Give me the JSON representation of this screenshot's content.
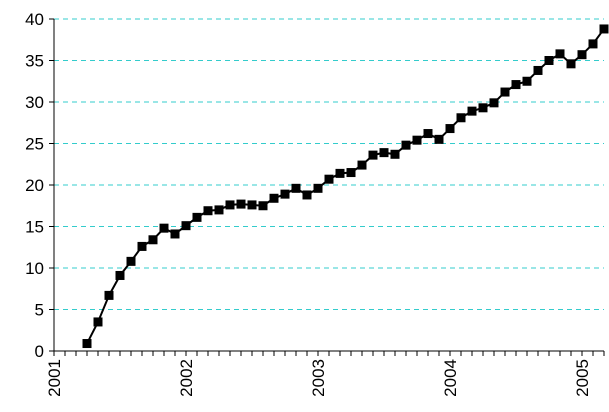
{
  "chart_data": {
    "type": "line",
    "categories": [
      "2001",
      null,
      null,
      null,
      null,
      null,
      null,
      null,
      null,
      null,
      null,
      null,
      "2002",
      null,
      null,
      null,
      null,
      null,
      null,
      null,
      null,
      null,
      null,
      null,
      "2003",
      null,
      null,
      null,
      null,
      null,
      null,
      null,
      null,
      null,
      null,
      null,
      "2004",
      null,
      null,
      null,
      null,
      null,
      null,
      null,
      null,
      null,
      null,
      null,
      "2005",
      null,
      null
    ],
    "series": [
      {
        "color": "#000000",
        "values": [
          null,
          null,
          null,
          0.9,
          3.5,
          6.7,
          9.1,
          10.8,
          12.6,
          13.4,
          14.8,
          14.1,
          15.1,
          16.1,
          16.9,
          17.0,
          17.6,
          17.7,
          17.6,
          17.5,
          18.4,
          18.9,
          19.6,
          18.8,
          19.6,
          20.7,
          21.4,
          21.5,
          22.4,
          23.6,
          23.9,
          23.7,
          24.8,
          25.4,
          26.2,
          25.5,
          26.8,
          28.1,
          28.9,
          29.3,
          29.9,
          31.2,
          32.1,
          32.5,
          33.8,
          35.0,
          35.8,
          34.6,
          35.7,
          37.0,
          38.8
        ]
      }
    ],
    "ylim": [
      0,
      40
    ],
    "yticks": [
      0,
      5,
      10,
      15,
      20,
      25,
      30,
      35,
      40
    ],
    "grid": true
  }
}
